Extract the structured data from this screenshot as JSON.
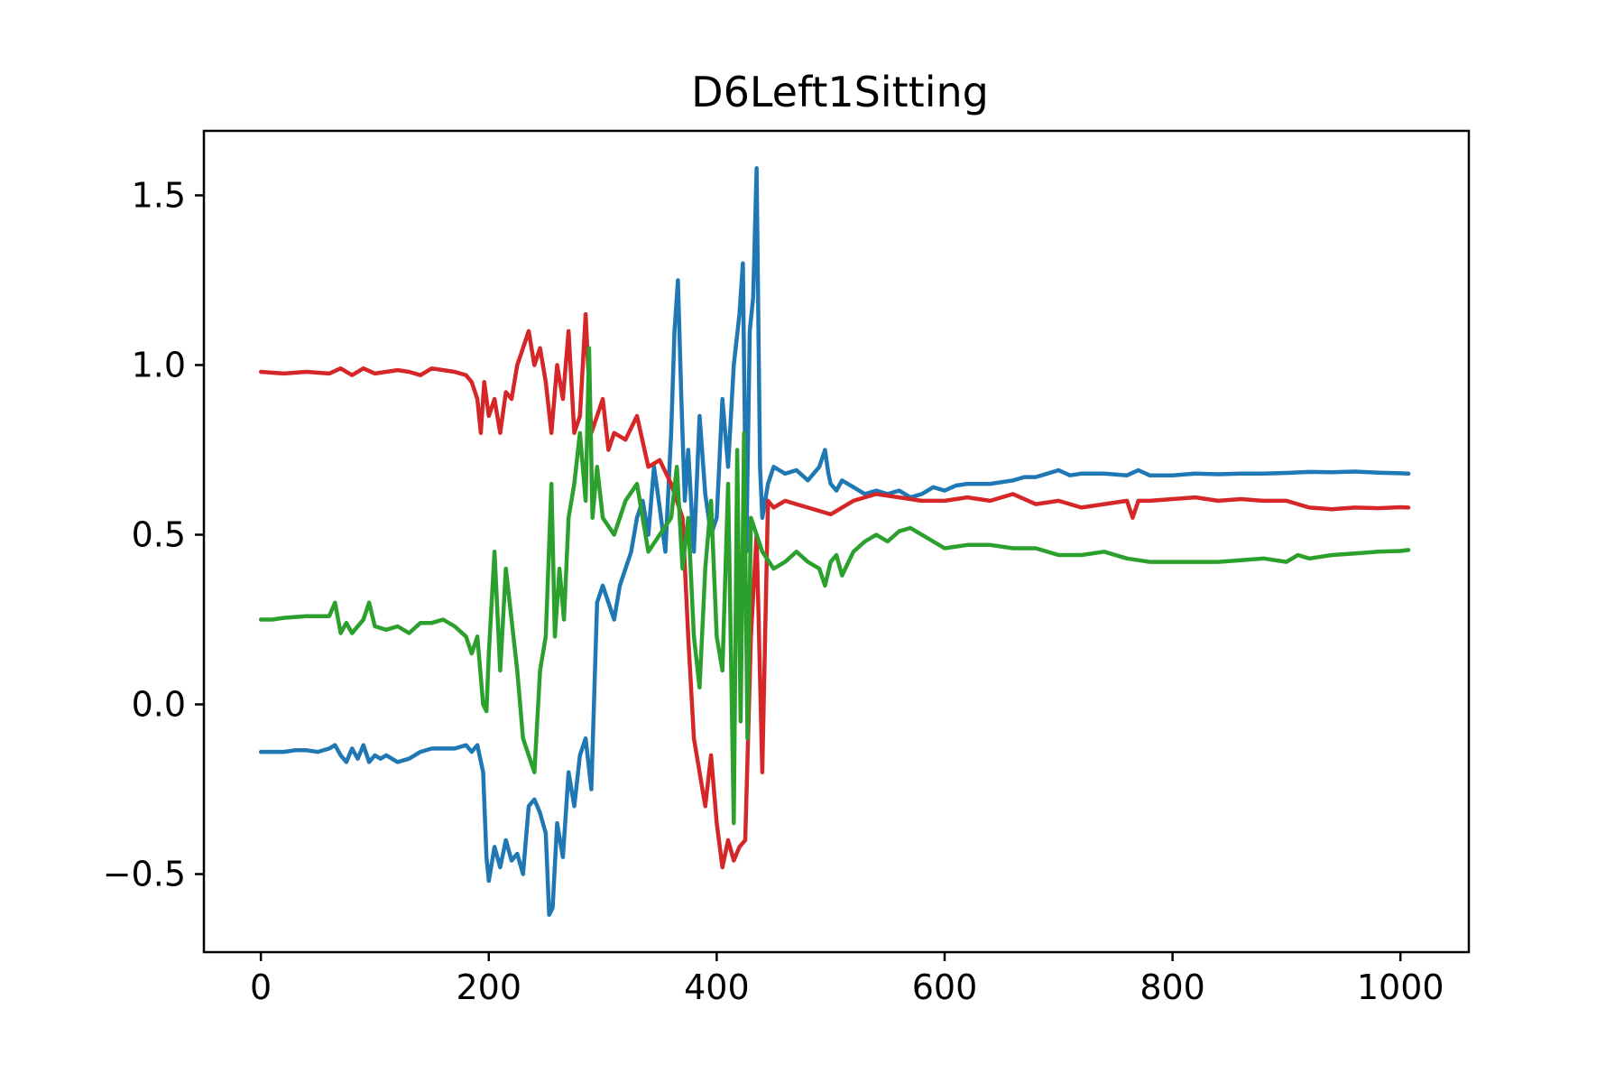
{
  "chart_data": {
    "type": "line",
    "title": "D6Left1Sitting",
    "xlabel": "",
    "ylabel": "",
    "xlim": [
      -50,
      1060
    ],
    "ylim": [
      -0.73,
      1.69
    ],
    "x_ticks": [
      0,
      200,
      400,
      600,
      800,
      1000
    ],
    "y_ticks": [
      -0.5,
      0.0,
      0.5,
      1.0,
      1.5
    ],
    "x_tick_labels": [
      "0",
      "200",
      "400",
      "600",
      "800",
      "1000"
    ],
    "y_tick_labels": [
      "−0.5",
      "0.0",
      "0.5",
      "1.0",
      "1.5"
    ],
    "grid": false,
    "legend": "none",
    "series": [
      {
        "color": "#1f77b4",
        "x": [
          0,
          10,
          20,
          30,
          40,
          50,
          60,
          65,
          70,
          75,
          80,
          85,
          90,
          95,
          100,
          105,
          110,
          120,
          130,
          140,
          150,
          160,
          170,
          180,
          185,
          190,
          195,
          198,
          200,
          205,
          210,
          215,
          220,
          225,
          230,
          235,
          240,
          245,
          250,
          253,
          256,
          260,
          265,
          270,
          275,
          280,
          285,
          290,
          295,
          300,
          305,
          310,
          315,
          320,
          325,
          330,
          335,
          340,
          345,
          350,
          355,
          360,
          363,
          366,
          369,
          372,
          375,
          380,
          385,
          390,
          395,
          400,
          405,
          410,
          415,
          420,
          423,
          426,
          429,
          432,
          435,
          438,
          440,
          445,
          450,
          460,
          470,
          480,
          490,
          495,
          498,
          500,
          505,
          510,
          520,
          530,
          540,
          550,
          560,
          570,
          580,
          590,
          600,
          610,
          620,
          640,
          660,
          670,
          680,
          690,
          700,
          710,
          720,
          740,
          760,
          770,
          780,
          800,
          820,
          840,
          860,
          880,
          900,
          920,
          940,
          960,
          980,
          1000,
          1007
        ],
        "y": [
          -0.14,
          -0.14,
          -0.14,
          -0.135,
          -0.135,
          -0.14,
          -0.13,
          -0.12,
          -0.15,
          -0.17,
          -0.13,
          -0.16,
          -0.12,
          -0.17,
          -0.15,
          -0.16,
          -0.15,
          -0.17,
          -0.16,
          -0.14,
          -0.13,
          -0.13,
          -0.13,
          -0.12,
          -0.14,
          -0.12,
          -0.2,
          -0.45,
          -0.52,
          -0.42,
          -0.48,
          -0.4,
          -0.46,
          -0.44,
          -0.5,
          -0.3,
          -0.28,
          -0.32,
          -0.38,
          -0.62,
          -0.6,
          -0.35,
          -0.45,
          -0.2,
          -0.3,
          -0.15,
          -0.1,
          -0.25,
          0.3,
          0.35,
          0.3,
          0.25,
          0.35,
          0.4,
          0.45,
          0.55,
          0.6,
          0.5,
          0.7,
          0.58,
          0.45,
          0.8,
          1.1,
          1.25,
          0.9,
          0.6,
          0.75,
          0.45,
          0.85,
          0.62,
          0.5,
          0.55,
          0.9,
          0.7,
          1.0,
          1.15,
          1.3,
          0.45,
          1.1,
          1.2,
          1.58,
          0.7,
          0.55,
          0.65,
          0.7,
          0.68,
          0.69,
          0.66,
          0.7,
          0.75,
          0.68,
          0.65,
          0.63,
          0.66,
          0.64,
          0.62,
          0.63,
          0.62,
          0.63,
          0.61,
          0.62,
          0.64,
          0.63,
          0.645,
          0.65,
          0.65,
          0.66,
          0.67,
          0.67,
          0.68,
          0.69,
          0.675,
          0.68,
          0.68,
          0.675,
          0.69,
          0.675,
          0.675,
          0.68,
          0.678,
          0.68,
          0.68,
          0.682,
          0.685,
          0.684,
          0.686,
          0.683,
          0.681,
          0.68
        ]
      },
      {
        "color": "#d62728",
        "x": [
          0,
          20,
          40,
          60,
          70,
          80,
          90,
          100,
          110,
          120,
          130,
          140,
          150,
          160,
          170,
          180,
          185,
          190,
          193,
          196,
          200,
          205,
          210,
          215,
          220,
          225,
          230,
          235,
          240,
          245,
          250,
          255,
          260,
          265,
          270,
          275,
          280,
          285,
          290,
          295,
          300,
          305,
          310,
          320,
          330,
          340,
          350,
          360,
          370,
          375,
          380,
          385,
          390,
          395,
          400,
          405,
          410,
          415,
          420,
          425,
          430,
          435,
          440,
          445,
          450,
          460,
          480,
          500,
          520,
          540,
          560,
          580,
          600,
          620,
          640,
          660,
          680,
          700,
          720,
          740,
          760,
          765,
          770,
          780,
          800,
          820,
          840,
          860,
          880,
          900,
          920,
          940,
          960,
          980,
          1000,
          1007
        ],
        "y": [
          0.98,
          0.975,
          0.98,
          0.975,
          0.99,
          0.97,
          0.99,
          0.975,
          0.98,
          0.985,
          0.98,
          0.97,
          0.99,
          0.985,
          0.98,
          0.97,
          0.95,
          0.9,
          0.8,
          0.95,
          0.85,
          0.9,
          0.8,
          0.92,
          0.9,
          1.0,
          1.05,
          1.1,
          1.0,
          1.05,
          0.95,
          0.8,
          1.0,
          0.9,
          1.1,
          0.8,
          0.85,
          1.15,
          0.8,
          0.85,
          0.9,
          0.75,
          0.8,
          0.78,
          0.85,
          0.7,
          0.72,
          0.65,
          0.55,
          0.2,
          -0.1,
          -0.2,
          -0.3,
          -0.15,
          -0.35,
          -0.48,
          -0.4,
          -0.46,
          -0.42,
          -0.4,
          0.2,
          0.5,
          -0.2,
          0.6,
          0.58,
          0.6,
          0.58,
          0.56,
          0.6,
          0.62,
          0.61,
          0.6,
          0.6,
          0.61,
          0.6,
          0.62,
          0.59,
          0.6,
          0.58,
          0.59,
          0.6,
          0.55,
          0.6,
          0.6,
          0.605,
          0.61,
          0.6,
          0.605,
          0.6,
          0.6,
          0.58,
          0.575,
          0.58,
          0.578,
          0.581,
          0.58
        ]
      },
      {
        "color": "#2ca02c",
        "x": [
          0,
          10,
          20,
          40,
          60,
          65,
          70,
          75,
          80,
          90,
          95,
          100,
          110,
          120,
          130,
          140,
          150,
          160,
          170,
          180,
          185,
          190,
          195,
          198,
          200,
          205,
          210,
          215,
          220,
          225,
          230,
          235,
          240,
          245,
          250,
          255,
          258,
          262,
          266,
          270,
          275,
          280,
          285,
          288,
          291,
          295,
          300,
          310,
          320,
          330,
          340,
          350,
          360,
          365,
          370,
          375,
          380,
          385,
          390,
          395,
          400,
          405,
          410,
          415,
          418,
          421,
          424,
          427,
          430,
          440,
          450,
          460,
          470,
          480,
          490,
          495,
          500,
          505,
          510,
          520,
          530,
          540,
          550,
          560,
          570,
          580,
          590,
          600,
          620,
          640,
          660,
          680,
          700,
          720,
          740,
          760,
          780,
          800,
          820,
          840,
          860,
          880,
          900,
          905,
          910,
          920,
          940,
          960,
          980,
          1000,
          1007
        ],
        "y": [
          0.25,
          0.25,
          0.255,
          0.26,
          0.26,
          0.3,
          0.21,
          0.24,
          0.21,
          0.25,
          0.3,
          0.23,
          0.22,
          0.23,
          0.21,
          0.24,
          0.24,
          0.25,
          0.23,
          0.2,
          0.15,
          0.2,
          0.0,
          -0.02,
          0.15,
          0.45,
          0.1,
          0.4,
          0.25,
          0.1,
          -0.1,
          -0.15,
          -0.2,
          0.1,
          0.2,
          0.65,
          0.2,
          0.4,
          0.25,
          0.55,
          0.65,
          0.8,
          0.6,
          1.05,
          0.55,
          0.7,
          0.55,
          0.5,
          0.6,
          0.65,
          0.45,
          0.5,
          0.55,
          0.7,
          0.4,
          0.55,
          0.2,
          0.05,
          0.4,
          0.6,
          0.2,
          0.1,
          0.65,
          -0.35,
          0.75,
          -0.05,
          0.8,
          -0.1,
          0.55,
          0.45,
          0.4,
          0.42,
          0.45,
          0.42,
          0.4,
          0.35,
          0.42,
          0.44,
          0.38,
          0.45,
          0.48,
          0.5,
          0.48,
          0.51,
          0.52,
          0.5,
          0.48,
          0.46,
          0.47,
          0.47,
          0.46,
          0.46,
          0.44,
          0.44,
          0.45,
          0.43,
          0.42,
          0.42,
          0.42,
          0.42,
          0.425,
          0.43,
          0.42,
          0.43,
          0.44,
          0.43,
          0.44,
          0.445,
          0.45,
          0.452,
          0.455
        ]
      }
    ]
  }
}
